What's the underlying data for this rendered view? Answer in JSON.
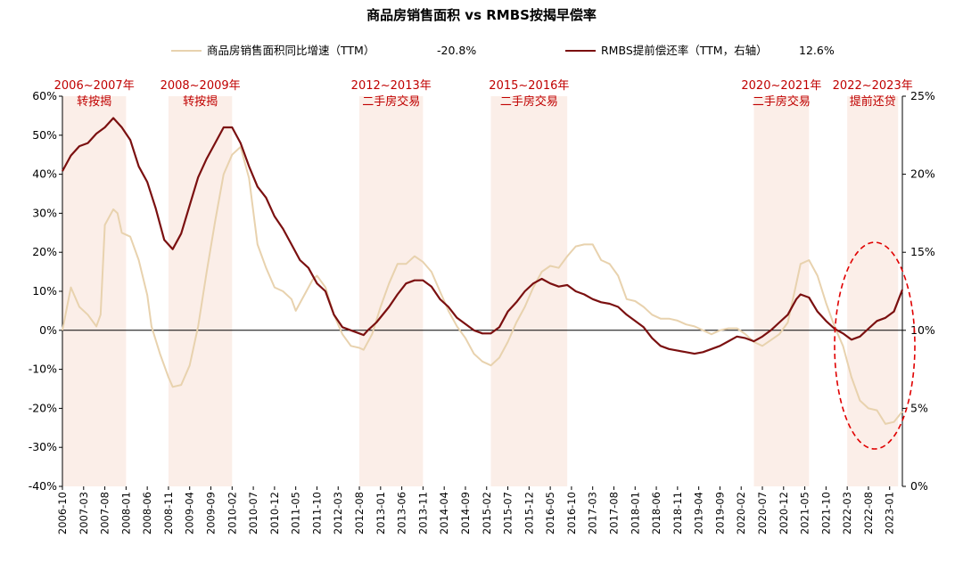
{
  "chart_data": {
    "type": "line",
    "title": "商品房销售面积 vs RMBS按揭早偿率",
    "legend": [
      {
        "label": "商品房销售面积同比增速（TTM）",
        "value": "-20.8%",
        "color": "#e8d2ae"
      },
      {
        "label": "RMBS提前偿还率（TTM，右轴）",
        "value": "12.6%",
        "color": "#7b1010"
      }
    ],
    "y_left": {
      "min": -40,
      "max": 60,
      "step": 10,
      "ticks": [
        "60%",
        "50%",
        "40%",
        "30%",
        "20%",
        "10%",
        "0%",
        "-10%",
        "-20%",
        "-30%",
        "-40%"
      ]
    },
    "y_right": {
      "min": 0,
      "max": 25,
      "step": 5,
      "ticks": [
        "25%",
        "20%",
        "15%",
        "10%",
        "5%",
        "0%"
      ]
    },
    "x_ticks": [
      "2006-10",
      "2007-03",
      "2007-08",
      "2008-01",
      "2008-06",
      "2008-11",
      "2009-04",
      "2009-09",
      "2010-02",
      "2010-07",
      "2010-12",
      "2011-05",
      "2011-10",
      "2012-03",
      "2012-08",
      "2013-01",
      "2013-06",
      "2013-11",
      "2014-04",
      "2014-09",
      "2015-02",
      "2015-07",
      "2015-12",
      "2016-05",
      "2016-10",
      "2017-03",
      "2017-08",
      "2018-01",
      "2018-06",
      "2018-11",
      "2019-04",
      "2019-09",
      "2020-02",
      "2020-07",
      "2020-12",
      "2021-05",
      "2021-10",
      "2022-03",
      "2022-08",
      "2023-01"
    ],
    "bands": [
      {
        "start": "2006-10",
        "end": "2008-01",
        "label1": "2006~2007年",
        "label2": "转按揭"
      },
      {
        "start": "2008-11",
        "end": "2010-02",
        "label1": "2008~2009年",
        "label2": "转按揭"
      },
      {
        "start": "2012-08",
        "end": "2013-11",
        "label1": "2012~2013年",
        "label2": "二手房交易"
      },
      {
        "start": "2015-03",
        "end": "2016-09",
        "label1": "2015~2016年",
        "label2": "二手房交易"
      },
      {
        "start": "2020-05",
        "end": "2021-06",
        "label1": "2020~2021年",
        "label2": "二手房交易"
      },
      {
        "start": "2022-03",
        "end": "2023-03",
        "label1": "2022~2023年",
        "label2": "提前还贷"
      }
    ],
    "series": [
      {
        "name": "商品房销售面积同比增速（TTM）",
        "axis": "left",
        "color": "#e8d2ae",
        "points": [
          [
            "2006-10",
            0
          ],
          [
            "2006-12",
            11
          ],
          [
            "2007-02",
            6
          ],
          [
            "2007-04",
            4
          ],
          [
            "2007-06",
            1
          ],
          [
            "2007-07",
            4
          ],
          [
            "2007-08",
            27
          ],
          [
            "2007-09",
            29
          ],
          [
            "2007-10",
            31
          ],
          [
            "2007-11",
            30
          ],
          [
            "2007-12",
            25
          ],
          [
            "2008-02",
            24
          ],
          [
            "2008-04",
            18
          ],
          [
            "2008-06",
            9
          ],
          [
            "2008-07",
            1
          ],
          [
            "2008-09",
            -6
          ],
          [
            "2008-11",
            -12
          ],
          [
            "2008-12",
            -14.5
          ],
          [
            "2009-02",
            -14
          ],
          [
            "2009-04",
            -9
          ],
          [
            "2009-06",
            1
          ],
          [
            "2009-08",
            15
          ],
          [
            "2009-10",
            28
          ],
          [
            "2009-12",
            40
          ],
          [
            "2010-02",
            45
          ],
          [
            "2010-04",
            47
          ],
          [
            "2010-06",
            39
          ],
          [
            "2010-08",
            22
          ],
          [
            "2010-10",
            16
          ],
          [
            "2010-12",
            11
          ],
          [
            "2011-02",
            10
          ],
          [
            "2011-04",
            8
          ],
          [
            "2011-05",
            5
          ],
          [
            "2011-07",
            9
          ],
          [
            "2011-09",
            13
          ],
          [
            "2011-10",
            14
          ],
          [
            "2011-12",
            11
          ],
          [
            "2012-02",
            4
          ],
          [
            "2012-04",
            -1
          ],
          [
            "2012-06",
            -4
          ],
          [
            "2012-08",
            -4.5
          ],
          [
            "2012-09",
            -5
          ],
          [
            "2012-11",
            -1
          ],
          [
            "2013-01",
            6
          ],
          [
            "2013-03",
            12
          ],
          [
            "2013-05",
            17
          ],
          [
            "2013-07",
            17
          ],
          [
            "2013-09",
            19
          ],
          [
            "2013-11",
            17.5
          ],
          [
            "2014-01",
            15
          ],
          [
            "2014-03",
            10
          ],
          [
            "2014-05",
            5
          ],
          [
            "2014-07",
            1
          ],
          [
            "2014-09",
            -2
          ],
          [
            "2014-11",
            -6
          ],
          [
            "2015-01",
            -8
          ],
          [
            "2015-03",
            -9
          ],
          [
            "2015-05",
            -7
          ],
          [
            "2015-07",
            -3
          ],
          [
            "2015-09",
            2
          ],
          [
            "2015-11",
            6
          ],
          [
            "2016-01",
            11
          ],
          [
            "2016-03",
            15
          ],
          [
            "2016-05",
            16.5
          ],
          [
            "2016-07",
            16
          ],
          [
            "2016-09",
            19
          ],
          [
            "2016-11",
            21.5
          ],
          [
            "2017-01",
            22
          ],
          [
            "2017-03",
            22
          ],
          [
            "2017-05",
            18
          ],
          [
            "2017-07",
            17
          ],
          [
            "2017-09",
            14
          ],
          [
            "2017-11",
            8
          ],
          [
            "2018-01",
            7.5
          ],
          [
            "2018-03",
            6
          ],
          [
            "2018-05",
            4
          ],
          [
            "2018-07",
            3
          ],
          [
            "2018-09",
            3
          ],
          [
            "2018-11",
            2.5
          ],
          [
            "2019-01",
            1.5
          ],
          [
            "2019-03",
            1
          ],
          [
            "2019-05",
            0
          ],
          [
            "2019-07",
            -1
          ],
          [
            "2019-09",
            0
          ],
          [
            "2019-11",
            0.5
          ],
          [
            "2020-01",
            0.5
          ],
          [
            "2020-03",
            -1
          ],
          [
            "2020-05",
            -3
          ],
          [
            "2020-07",
            -4
          ],
          [
            "2020-09",
            -2.5
          ],
          [
            "2020-11",
            -1
          ],
          [
            "2021-01",
            2
          ],
          [
            "2021-03",
            12
          ],
          [
            "2021-04",
            17
          ],
          [
            "2021-06",
            18
          ],
          [
            "2021-08",
            14
          ],
          [
            "2021-10",
            7
          ],
          [
            "2021-12",
            1
          ],
          [
            "2022-02",
            -4
          ],
          [
            "2022-04",
            -12
          ],
          [
            "2022-06",
            -18
          ],
          [
            "2022-08",
            -20
          ],
          [
            "2022-10",
            -20.5
          ],
          [
            "2022-12",
            -24
          ],
          [
            "2023-02",
            -23.5
          ],
          [
            "2023-04",
            -20.8
          ]
        ]
      },
      {
        "name": "RMBS提前偿还率（TTM，右轴）",
        "axis": "right",
        "color": "#7b1010",
        "points": [
          [
            "2006-10",
            20.2
          ],
          [
            "2006-12",
            21.2
          ],
          [
            "2007-02",
            21.8
          ],
          [
            "2007-04",
            22.0
          ],
          [
            "2007-06",
            22.6
          ],
          [
            "2007-08",
            23.0
          ],
          [
            "2007-10",
            23.6
          ],
          [
            "2007-12",
            23.0
          ],
          [
            "2008-02",
            22.2
          ],
          [
            "2008-04",
            20.5
          ],
          [
            "2008-06",
            19.5
          ],
          [
            "2008-08",
            17.8
          ],
          [
            "2008-10",
            15.8
          ],
          [
            "2008-12",
            15.2
          ],
          [
            "2009-02",
            16.2
          ],
          [
            "2009-04",
            18.0
          ],
          [
            "2009-06",
            19.8
          ],
          [
            "2009-08",
            21.0
          ],
          [
            "2009-10",
            22.0
          ],
          [
            "2009-12",
            23.0
          ],
          [
            "2010-02",
            23.0
          ],
          [
            "2010-04",
            22.0
          ],
          [
            "2010-06",
            20.5
          ],
          [
            "2010-08",
            19.2
          ],
          [
            "2010-10",
            18.5
          ],
          [
            "2010-12",
            17.3
          ],
          [
            "2011-02",
            16.5
          ],
          [
            "2011-04",
            15.5
          ],
          [
            "2011-06",
            14.5
          ],
          [
            "2011-08",
            14.0
          ],
          [
            "2011-10",
            13.0
          ],
          [
            "2011-12",
            12.5
          ],
          [
            "2012-02",
            11.0
          ],
          [
            "2012-04",
            10.2
          ],
          [
            "2012-06",
            10.0
          ],
          [
            "2012-08",
            9.8
          ],
          [
            "2012-09",
            9.7
          ],
          [
            "2012-10",
            10.0
          ],
          [
            "2012-12",
            10.5
          ],
          [
            "2013-03",
            11.5
          ],
          [
            "2013-05",
            12.3
          ],
          [
            "2013-07",
            13.0
          ],
          [
            "2013-09",
            13.2
          ],
          [
            "2013-11",
            13.2
          ],
          [
            "2014-01",
            12.8
          ],
          [
            "2014-03",
            12.0
          ],
          [
            "2014-05",
            11.5
          ],
          [
            "2014-07",
            10.8
          ],
          [
            "2014-09",
            10.4
          ],
          [
            "2014-11",
            10.0
          ],
          [
            "2015-01",
            9.8
          ],
          [
            "2015-03",
            9.8
          ],
          [
            "2015-05",
            10.2
          ],
          [
            "2015-07",
            11.2
          ],
          [
            "2015-09",
            11.8
          ],
          [
            "2015-11",
            12.5
          ],
          [
            "2016-01",
            13.0
          ],
          [
            "2016-03",
            13.3
          ],
          [
            "2016-05",
            13.0
          ],
          [
            "2016-07",
            12.8
          ],
          [
            "2016-09",
            12.9
          ],
          [
            "2016-11",
            12.5
          ],
          [
            "2017-01",
            12.3
          ],
          [
            "2017-03",
            12.0
          ],
          [
            "2017-05",
            11.8
          ],
          [
            "2017-07",
            11.7
          ],
          [
            "2017-09",
            11.5
          ],
          [
            "2017-11",
            11.0
          ],
          [
            "2018-01",
            10.6
          ],
          [
            "2018-03",
            10.2
          ],
          [
            "2018-05",
            9.5
          ],
          [
            "2018-07",
            9.0
          ],
          [
            "2018-09",
            8.8
          ],
          [
            "2018-11",
            8.7
          ],
          [
            "2019-01",
            8.6
          ],
          [
            "2019-03",
            8.5
          ],
          [
            "2019-05",
            8.6
          ],
          [
            "2019-07",
            8.8
          ],
          [
            "2019-09",
            9.0
          ],
          [
            "2019-11",
            9.3
          ],
          [
            "2020-01",
            9.6
          ],
          [
            "2020-03",
            9.5
          ],
          [
            "2020-05",
            9.3
          ],
          [
            "2020-07",
            9.6
          ],
          [
            "2020-09",
            10.0
          ],
          [
            "2020-11",
            10.5
          ],
          [
            "2021-01",
            11.0
          ],
          [
            "2021-03",
            12.0
          ],
          [
            "2021-04",
            12.3
          ],
          [
            "2021-06",
            12.1
          ],
          [
            "2021-08",
            11.2
          ],
          [
            "2021-10",
            10.6
          ],
          [
            "2021-12",
            10.1
          ],
          [
            "2022-02",
            9.8
          ],
          [
            "2022-04",
            9.4
          ],
          [
            "2022-06",
            9.6
          ],
          [
            "2022-08",
            10.1
          ],
          [
            "2022-10",
            10.6
          ],
          [
            "2022-12",
            10.8
          ],
          [
            "2023-02",
            11.2
          ],
          [
            "2023-04",
            12.6
          ]
        ]
      }
    ]
  }
}
